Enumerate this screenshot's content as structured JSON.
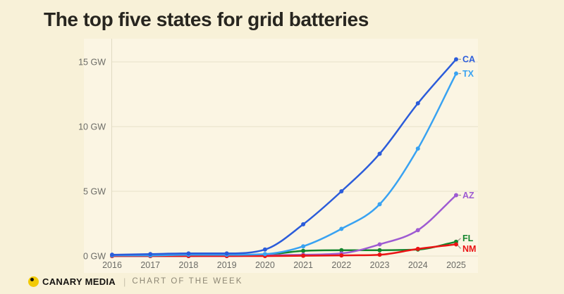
{
  "page": {
    "title": "The top five states for grid batteries",
    "background_color": "#f8f1d8",
    "panel_background_color": "#fbf5e3"
  },
  "chart_data": {
    "type": "line",
    "title": "The top five states for grid batteries",
    "unit": "GW",
    "x": [
      2016,
      2017,
      2018,
      2019,
      2020,
      2021,
      2022,
      2023,
      2024,
      2025
    ],
    "x_tick_labels": [
      "2016",
      "2017",
      "2018",
      "2019",
      "2020",
      "2021",
      "2022",
      "2023",
      "2024",
      "2025"
    ],
    "y_ticks": [
      {
        "value": 15,
        "label": "15 GW"
      },
      {
        "value": 10,
        "label": "10 GW"
      },
      {
        "value": 5,
        "label": "5 GW"
      },
      {
        "value": 0,
        "label": "0 GW"
      }
    ],
    "ylim": [
      0,
      16.5
    ],
    "grid": "horizontal",
    "legend_position": "line-end-labels",
    "series": [
      {
        "name": "CA",
        "color": "#2b5cda",
        "values": [
          0.1,
          0.15,
          0.2,
          0.2,
          0.5,
          2.45,
          5.0,
          7.9,
          11.8,
          15.2
        ]
      },
      {
        "name": "TX",
        "color": "#38a2f2",
        "values": [
          0.05,
          0.05,
          0.1,
          0.1,
          0.15,
          0.75,
          2.1,
          4.0,
          8.3,
          14.1
        ]
      },
      {
        "name": "AZ",
        "color": "#9e5bd2",
        "values": [
          0.0,
          0.0,
          0.0,
          0.0,
          0.05,
          0.1,
          0.2,
          0.9,
          2.0,
          4.7
        ]
      },
      {
        "name": "FL",
        "color": "#12852c",
        "values": [
          0.0,
          0.0,
          0.0,
          0.05,
          0.1,
          0.4,
          0.45,
          0.45,
          0.5,
          1.1
        ]
      },
      {
        "name": "NM",
        "color": "#ea1314",
        "values": [
          0.0,
          0.0,
          0.0,
          0.0,
          0.0,
          0.02,
          0.05,
          0.1,
          0.55,
          0.9
        ]
      }
    ],
    "axis_text_color": "#6b6b66",
    "gridline_color": "#e7e1ca",
    "leader_line_color": "#9a968a"
  },
  "footer": {
    "brand": "CANARY MEDIA",
    "separator": "|",
    "tagline": "CHART OF THE WEEK",
    "logo_color": "#f2ca06"
  }
}
